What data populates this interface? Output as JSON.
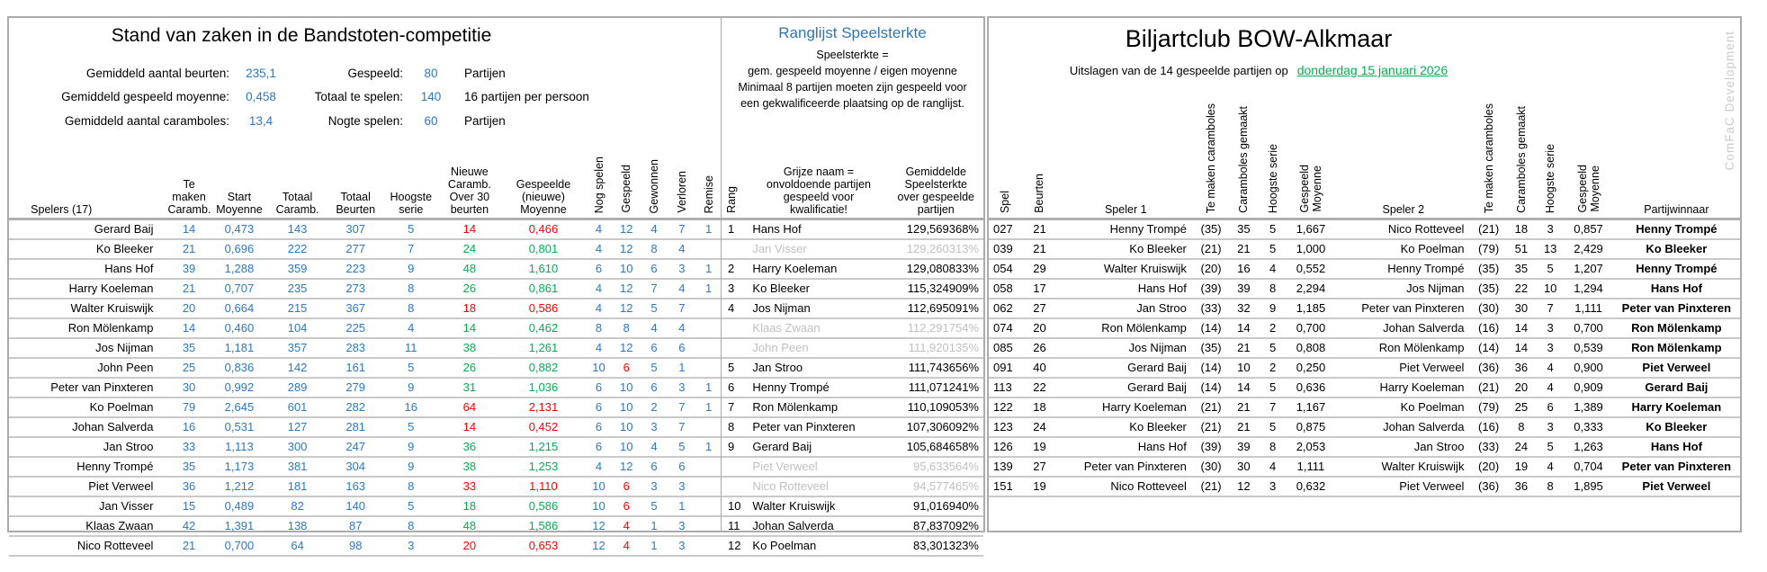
{
  "colors": {
    "accent_blue": "#2b78c5",
    "positive_green": "#00b050",
    "negative_red": "#ff0000",
    "unqualified_grey": "#c0c0c0",
    "title_blue": "#2e75b6",
    "date_green": "#00b050"
  },
  "standings": {
    "title": "Stand van zaken in de Bandstoten-competitie",
    "summary_left": [
      {
        "label": "Gemiddeld aantal beurten:",
        "value": "235,1"
      },
      {
        "label": "Gemiddeld gespeeld moyenne:",
        "value": "0,458"
      },
      {
        "label": "Gemiddeld aantal caramboles:",
        "value": "13,4"
      }
    ],
    "summary_right": [
      {
        "label": "Gespeeld:",
        "value": "80",
        "unit": "Partijen"
      },
      {
        "label": "Totaal te spelen:",
        "value": "140",
        "unit": "16 partijen per persoon"
      },
      {
        "label": "Nogte spelen:",
        "value": "60",
        "unit": "Partijen"
      }
    ],
    "headers": {
      "spelers": "Spelers (17)",
      "te_maken": "Te\nmaken\nCaramb.",
      "start_moyenne": "Start\nMoyenne",
      "totaal_caramboles": "Totaal\nCaramb.",
      "totaal_beurten": "Totaal\nBeurten",
      "hoogste_serie": "Hoogste\nserie",
      "nieuwe_caramboles": "Nieuwe\nCaramb.\nOver 30\nbeurten",
      "gespeelde_moyenne": "Gespeelde\n(nieuwe)\nMoyenne",
      "nog_spelen": "Nog spelen",
      "gespeeld": "Gespeeld",
      "gewonnen": "Gewonnen",
      "verloren": "Verloren",
      "remise": "Remise"
    },
    "rows": [
      {
        "name": "Gerard Baij",
        "te_maken": "14",
        "start_moyenne": "0,473",
        "totaal_caramboles": "143",
        "totaal_beurten": "307",
        "hoogste_serie": "5",
        "nieuwe_caramboles": "14",
        "nieuwe_color": "red",
        "gespeelde_moyenne": "0,466",
        "moyenne_color": "red",
        "nog_spelen": "4",
        "gespeeld": "12",
        "gespeeld_color": "blue",
        "gewonnen": "4",
        "verloren": "7",
        "remise": "1"
      },
      {
        "name": "Ko Bleeker",
        "te_maken": "21",
        "start_moyenne": "0,696",
        "totaal_caramboles": "222",
        "totaal_beurten": "277",
        "hoogste_serie": "7",
        "nieuwe_caramboles": "24",
        "nieuwe_color": "green",
        "gespeelde_moyenne": "0,801",
        "moyenne_color": "green",
        "nog_spelen": "4",
        "gespeeld": "12",
        "gespeeld_color": "blue",
        "gewonnen": "8",
        "verloren": "4",
        "remise": ""
      },
      {
        "name": "Hans Hof",
        "te_maken": "39",
        "start_moyenne": "1,288",
        "totaal_caramboles": "359",
        "totaal_beurten": "223",
        "hoogste_serie": "9",
        "nieuwe_caramboles": "48",
        "nieuwe_color": "green",
        "gespeelde_moyenne": "1,610",
        "moyenne_color": "green",
        "nog_spelen": "6",
        "gespeeld": "10",
        "gespeeld_color": "blue",
        "gewonnen": "6",
        "verloren": "3",
        "remise": "1"
      },
      {
        "name": "Harry Koeleman",
        "te_maken": "21",
        "start_moyenne": "0,707",
        "totaal_caramboles": "235",
        "totaal_beurten": "273",
        "hoogste_serie": "8",
        "nieuwe_caramboles": "26",
        "nieuwe_color": "green",
        "gespeelde_moyenne": "0,861",
        "moyenne_color": "green",
        "nog_spelen": "4",
        "gespeeld": "12",
        "gespeeld_color": "blue",
        "gewonnen": "7",
        "verloren": "4",
        "remise": "1"
      },
      {
        "name": "Walter Kruiswijk",
        "te_maken": "20",
        "start_moyenne": "0,664",
        "totaal_caramboles": "215",
        "totaal_beurten": "367",
        "hoogste_serie": "8",
        "nieuwe_caramboles": "18",
        "nieuwe_color": "red",
        "gespeelde_moyenne": "0,586",
        "moyenne_color": "red",
        "nog_spelen": "4",
        "gespeeld": "12",
        "gespeeld_color": "blue",
        "gewonnen": "5",
        "verloren": "7",
        "remise": ""
      },
      {
        "name": "Ron Mölenkamp",
        "te_maken": "14",
        "start_moyenne": "0,460",
        "totaal_caramboles": "104",
        "totaal_beurten": "225",
        "hoogste_serie": "4",
        "nieuwe_caramboles": "14",
        "nieuwe_color": "green",
        "gespeelde_moyenne": "0,462",
        "moyenne_color": "green",
        "nog_spelen": "8",
        "gespeeld": "8",
        "gespeeld_color": "blue",
        "gewonnen": "4",
        "verloren": "4",
        "remise": ""
      },
      {
        "name": "Jos Nijman",
        "te_maken": "35",
        "start_moyenne": "1,181",
        "totaal_caramboles": "357",
        "totaal_beurten": "283",
        "hoogste_serie": "11",
        "nieuwe_caramboles": "38",
        "nieuwe_color": "green",
        "gespeelde_moyenne": "1,261",
        "moyenne_color": "green",
        "nog_spelen": "4",
        "gespeeld": "12",
        "gespeeld_color": "blue",
        "gewonnen": "6",
        "verloren": "6",
        "remise": ""
      },
      {
        "name": "John Peen",
        "te_maken": "25",
        "start_moyenne": "0,836",
        "totaal_caramboles": "142",
        "totaal_beurten": "161",
        "hoogste_serie": "5",
        "nieuwe_caramboles": "26",
        "nieuwe_color": "green",
        "gespeelde_moyenne": "0,882",
        "moyenne_color": "green",
        "nog_spelen": "10",
        "gespeeld": "6",
        "gespeeld_color": "red",
        "gewonnen": "5",
        "verloren": "1",
        "remise": ""
      },
      {
        "name": "Peter van Pinxteren",
        "te_maken": "30",
        "start_moyenne": "0,992",
        "totaal_caramboles": "289",
        "totaal_beurten": "279",
        "hoogste_serie": "9",
        "nieuwe_caramboles": "31",
        "nieuwe_color": "green",
        "gespeelde_moyenne": "1,036",
        "moyenne_color": "green",
        "nog_spelen": "6",
        "gespeeld": "10",
        "gespeeld_color": "blue",
        "gewonnen": "6",
        "verloren": "3",
        "remise": "1"
      },
      {
        "name": "Ko Poelman",
        "te_maken": "79",
        "start_moyenne": "2,645",
        "totaal_caramboles": "601",
        "totaal_beurten": "282",
        "hoogste_serie": "16",
        "nieuwe_caramboles": "64",
        "nieuwe_color": "red",
        "gespeelde_moyenne": "2,131",
        "moyenne_color": "red",
        "nog_spelen": "6",
        "gespeeld": "10",
        "gespeeld_color": "blue",
        "gewonnen": "2",
        "verloren": "7",
        "remise": "1"
      },
      {
        "name": "Johan Salverda",
        "te_maken": "16",
        "start_moyenne": "0,531",
        "totaal_caramboles": "127",
        "totaal_beurten": "281",
        "hoogste_serie": "5",
        "nieuwe_caramboles": "14",
        "nieuwe_color": "red",
        "gespeelde_moyenne": "0,452",
        "moyenne_color": "red",
        "nog_spelen": "6",
        "gespeeld": "10",
        "gespeeld_color": "blue",
        "gewonnen": "3",
        "verloren": "7",
        "remise": ""
      },
      {
        "name": "Jan Stroo",
        "te_maken": "33",
        "start_moyenne": "1,113",
        "totaal_caramboles": "300",
        "totaal_beurten": "247",
        "hoogste_serie": "9",
        "nieuwe_caramboles": "36",
        "nieuwe_color": "green",
        "gespeelde_moyenne": "1,215",
        "moyenne_color": "green",
        "nog_spelen": "6",
        "gespeeld": "10",
        "gespeeld_color": "blue",
        "gewonnen": "4",
        "verloren": "5",
        "remise": "1"
      },
      {
        "name": "Henny Trompé",
        "te_maken": "35",
        "start_moyenne": "1,173",
        "totaal_caramboles": "381",
        "totaal_beurten": "304",
        "hoogste_serie": "9",
        "nieuwe_caramboles": "38",
        "nieuwe_color": "green",
        "gespeelde_moyenne": "1,253",
        "moyenne_color": "green",
        "nog_spelen": "4",
        "gespeeld": "12",
        "gespeeld_color": "blue",
        "gewonnen": "6",
        "verloren": "6",
        "remise": ""
      },
      {
        "name": "Piet Verweel",
        "te_maken": "36",
        "start_moyenne": "1,212",
        "totaal_caramboles": "181",
        "totaal_beurten": "163",
        "hoogste_serie": "8",
        "nieuwe_caramboles": "33",
        "nieuwe_color": "red",
        "gespeelde_moyenne": "1,110",
        "moyenne_color": "red",
        "nog_spelen": "10",
        "gespeeld": "6",
        "gespeeld_color": "red",
        "gewonnen": "3",
        "verloren": "3",
        "remise": ""
      },
      {
        "name": "Jan Visser",
        "te_maken": "15",
        "start_moyenne": "0,489",
        "totaal_caramboles": "82",
        "totaal_beurten": "140",
        "hoogste_serie": "5",
        "nieuwe_caramboles": "18",
        "nieuwe_color": "green",
        "gespeelde_moyenne": "0,586",
        "moyenne_color": "green",
        "nog_spelen": "10",
        "gespeeld": "6",
        "gespeeld_color": "red",
        "gewonnen": "5",
        "verloren": "1",
        "remise": ""
      },
      {
        "name": "Klaas Zwaan",
        "te_maken": "42",
        "start_moyenne": "1,391",
        "totaal_caramboles": "138",
        "totaal_beurten": "87",
        "hoogste_serie": "8",
        "nieuwe_caramboles": "48",
        "nieuwe_color": "green",
        "gespeelde_moyenne": "1,586",
        "moyenne_color": "green",
        "nog_spelen": "12",
        "gespeeld": "4",
        "gespeeld_color": "red",
        "gewonnen": "1",
        "verloren": "3",
        "remise": ""
      },
      {
        "name": "Nico Rotteveel",
        "te_maken": "21",
        "start_moyenne": "0,700",
        "totaal_caramboles": "64",
        "totaal_beurten": "98",
        "hoogste_serie": "3",
        "nieuwe_caramboles": "20",
        "nieuwe_color": "red",
        "gespeelde_moyenne": "0,653",
        "moyenne_color": "red",
        "nog_spelen": "12",
        "gespeeld": "4",
        "gespeeld_color": "red",
        "gewonnen": "1",
        "verloren": "3",
        "remise": ""
      }
    ]
  },
  "ranking": {
    "title": "Ranglijst Speelsterkte",
    "subtitle": "Speelsterkte =\ngem. gespeeld moyenne / eigen moyenne\nMinimaal 8 partijen moeten zijn gespeeld voor\neen gekwalificeerde plaatsing op de ranglijst.",
    "headers": {
      "rang": "Rang",
      "name": "Grijze naam =\nonvoldoende partijen\ngespeeld voor\nkwalificatie!",
      "pct": "Gemiddelde\nSpeelsterkte\nover gespeelde\npartijen"
    },
    "rows": [
      {
        "rang": "1",
        "name": "Hans Hof",
        "pct": "129,569368%",
        "qualified": true
      },
      {
        "rang": "",
        "name": "Jan Visser",
        "pct": "129,260313%",
        "qualified": false
      },
      {
        "rang": "2",
        "name": "Harry Koeleman",
        "pct": "129,080833%",
        "qualified": true
      },
      {
        "rang": "3",
        "name": "Ko Bleeker",
        "pct": "115,324909%",
        "qualified": true
      },
      {
        "rang": "4",
        "name": "Jos Nijman",
        "pct": "112,695091%",
        "qualified": true
      },
      {
        "rang": "",
        "name": "Klaas Zwaan",
        "pct": "112,291754%",
        "qualified": false
      },
      {
        "rang": "",
        "name": "John Peen",
        "pct": "111,920135%",
        "qualified": false
      },
      {
        "rang": "5",
        "name": "Jan Stroo",
        "pct": "111,743656%",
        "qualified": true
      },
      {
        "rang": "6",
        "name": "Henny Trompé",
        "pct": "111,071241%",
        "qualified": true
      },
      {
        "rang": "7",
        "name": "Ron Mölenkamp",
        "pct": "110,109053%",
        "qualified": true
      },
      {
        "rang": "8",
        "name": "Peter van Pinxteren",
        "pct": "107,306092%",
        "qualified": true
      },
      {
        "rang": "9",
        "name": "Gerard Baij",
        "pct": "105,684658%",
        "qualified": true
      },
      {
        "rang": "",
        "name": "Piet Verweel",
        "pct": "95,633564%",
        "qualified": false
      },
      {
        "rang": "",
        "name": "Nico Rotteveel",
        "pct": "94,577465%",
        "qualified": false
      },
      {
        "rang": "10",
        "name": "Walter Kruiswijk",
        "pct": "91,016940%",
        "qualified": true
      },
      {
        "rang": "11",
        "name": "Johan Salverda",
        "pct": "87,837092%",
        "qualified": true
      },
      {
        "rang": "12",
        "name": "Ko Poelman",
        "pct": "83,301323%",
        "qualified": true
      }
    ]
  },
  "matches": {
    "title": "Biljartclub BOW-Alkmaar",
    "subtitle_prefix": "Uitslagen van de 14 gespeelde partijen op",
    "date": "donderdag 15 januari 2026",
    "headers": {
      "spel": "Spel",
      "beurten": "Beurten",
      "speler1": "Speler 1",
      "te_maken": "Te maken caramboles",
      "caramboles_gemaakt": "Caramboles gemaakt",
      "hoogste_serie": "Hoogste serie",
      "gespeeld_moyenne": "Gespeeld\nMoyenne",
      "speler2": "Speler 2",
      "partijwinnaar": "Partijwinnaar"
    },
    "rows": [
      {
        "spel": "027",
        "beurten": "21",
        "speler1": "Henny Trompé",
        "hcp1": "(35)",
        "car1": "35",
        "serie1": "5",
        "moy1": "1,667",
        "speler2": "Nico Rotteveel",
        "hcp2": "(21)",
        "car2": "18",
        "serie2": "3",
        "moy2": "0,857",
        "winnaar": "Henny Trompé"
      },
      {
        "spel": "039",
        "beurten": "21",
        "speler1": "Ko Bleeker",
        "hcp1": "(21)",
        "car1": "21",
        "serie1": "5",
        "moy1": "1,000",
        "speler2": "Ko Poelman",
        "hcp2": "(79)",
        "car2": "51",
        "serie2": "13",
        "moy2": "2,429",
        "winnaar": "Ko Bleeker"
      },
      {
        "spel": "054",
        "beurten": "29",
        "speler1": "Walter Kruiswijk",
        "hcp1": "(20)",
        "car1": "16",
        "serie1": "4",
        "moy1": "0,552",
        "speler2": "Henny Trompé",
        "hcp2": "(35)",
        "car2": "35",
        "serie2": "5",
        "moy2": "1,207",
        "winnaar": "Henny Trompé"
      },
      {
        "spel": "058",
        "beurten": "17",
        "speler1": "Hans Hof",
        "hcp1": "(39)",
        "car1": "39",
        "serie1": "8",
        "moy1": "2,294",
        "speler2": "Jos Nijman",
        "hcp2": "(35)",
        "car2": "22",
        "serie2": "10",
        "moy2": "1,294",
        "winnaar": "Hans Hof"
      },
      {
        "spel": "062",
        "beurten": "27",
        "speler1": "Jan Stroo",
        "hcp1": "(33)",
        "car1": "32",
        "serie1": "9",
        "moy1": "1,185",
        "speler2": "Peter van Pinxteren",
        "hcp2": "(30)",
        "car2": "30",
        "serie2": "7",
        "moy2": "1,111",
        "winnaar": "Peter van Pinxteren"
      },
      {
        "spel": "074",
        "beurten": "20",
        "speler1": "Ron Mölenkamp",
        "hcp1": "(14)",
        "car1": "14",
        "serie1": "2",
        "moy1": "0,700",
        "speler2": "Johan Salverda",
        "hcp2": "(16)",
        "car2": "14",
        "serie2": "3",
        "moy2": "0,700",
        "winnaar": "Ron Mölenkamp"
      },
      {
        "spel": "085",
        "beurten": "26",
        "speler1": "Jos Nijman",
        "hcp1": "(35)",
        "car1": "21",
        "serie1": "5",
        "moy1": "0,808",
        "speler2": "Ron Mölenkamp",
        "hcp2": "(14)",
        "car2": "14",
        "serie2": "3",
        "moy2": "0,539",
        "winnaar": "Ron Mölenkamp"
      },
      {
        "spel": "091",
        "beurten": "40",
        "speler1": "Gerard Baij",
        "hcp1": "(14)",
        "car1": "10",
        "serie1": "2",
        "moy1": "0,250",
        "speler2": "Piet Verweel",
        "hcp2": "(36)",
        "car2": "36",
        "serie2": "4",
        "moy2": "0,900",
        "winnaar": "Piet Verweel"
      },
      {
        "spel": "113",
        "beurten": "22",
        "speler1": "Gerard Baij",
        "hcp1": "(14)",
        "car1": "14",
        "serie1": "5",
        "moy1": "0,636",
        "speler2": "Harry Koeleman",
        "hcp2": "(21)",
        "car2": "20",
        "serie2": "4",
        "moy2": "0,909",
        "winnaar": "Gerard Baij"
      },
      {
        "spel": "122",
        "beurten": "18",
        "speler1": "Harry Koeleman",
        "hcp1": "(21)",
        "car1": "21",
        "serie1": "7",
        "moy1": "1,167",
        "speler2": "Ko Poelman",
        "hcp2": "(79)",
        "car2": "25",
        "serie2": "6",
        "moy2": "1,389",
        "winnaar": "Harry Koeleman"
      },
      {
        "spel": "123",
        "beurten": "24",
        "speler1": "Ko Bleeker",
        "hcp1": "(21)",
        "car1": "21",
        "serie1": "5",
        "moy1": "0,875",
        "speler2": "Johan Salverda",
        "hcp2": "(16)",
        "car2": "8",
        "serie2": "3",
        "moy2": "0,333",
        "winnaar": "Ko Bleeker"
      },
      {
        "spel": "126",
        "beurten": "19",
        "speler1": "Hans Hof",
        "hcp1": "(39)",
        "car1": "39",
        "serie1": "8",
        "moy1": "2,053",
        "speler2": "Jan Stroo",
        "hcp2": "(33)",
        "car2": "24",
        "serie2": "5",
        "moy2": "1,263",
        "winnaar": "Hans Hof"
      },
      {
        "spel": "139",
        "beurten": "27",
        "speler1": "Peter van Pinxteren",
        "hcp1": "(30)",
        "car1": "30",
        "serie1": "4",
        "moy1": "1,111",
        "speler2": "Walter Kruiswijk",
        "hcp2": "(20)",
        "car2": "19",
        "serie2": "4",
        "moy2": "0,704",
        "winnaar": "Peter van Pinxteren"
      },
      {
        "spel": "151",
        "beurten": "19",
        "speler1": "Nico Rotteveel",
        "hcp1": "(21)",
        "car1": "12",
        "serie1": "3",
        "moy1": "0,632",
        "speler2": "Piet Verweel",
        "hcp2": "(36)",
        "car2": "36",
        "serie2": "8",
        "moy2": "1,895",
        "winnaar": "Piet Verweel"
      }
    ]
  },
  "watermark": "ComFaC Development"
}
